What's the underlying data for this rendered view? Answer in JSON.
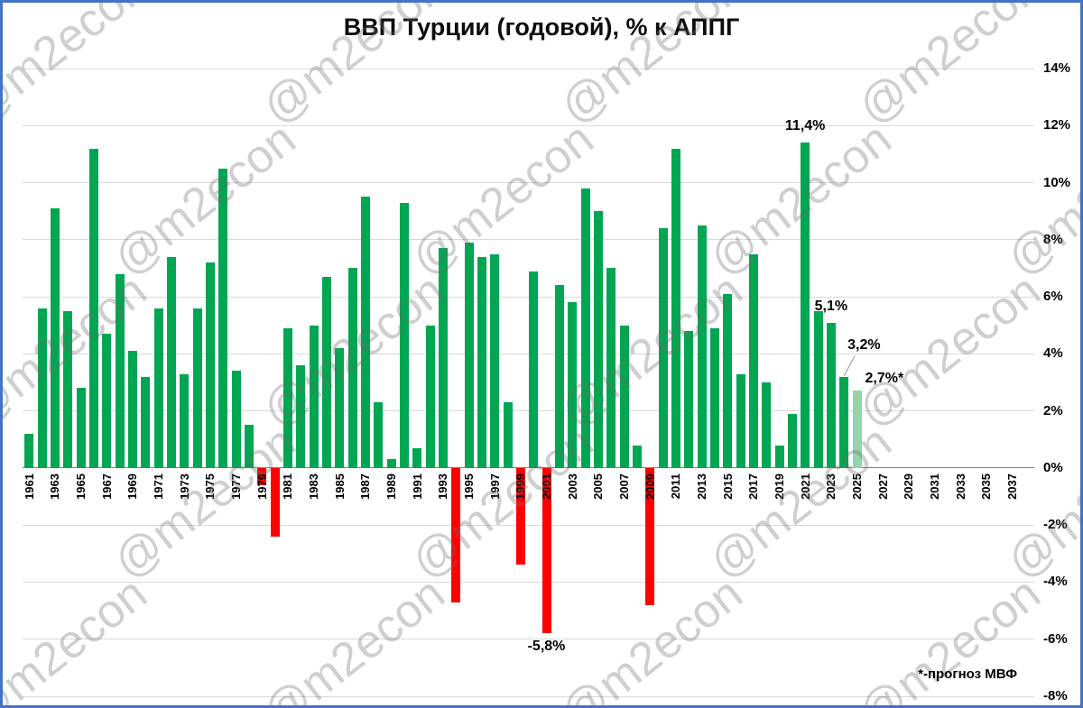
{
  "title": "ВВП Турции (годовой), % к АППГ",
  "footnote": "*-прогноз МВФ",
  "watermark": "@m2econ",
  "chart_data": {
    "type": "bar",
    "title": "ВВП Турции (годовой), % к АППГ",
    "ylabel": "% к АППГ",
    "ylim": [
      -8,
      14
    ],
    "y_tick_step": 2,
    "grid": true,
    "y_axis_side": "right",
    "x_first_year": 1961,
    "x_last_tick_year": 2037,
    "x_tick_step": 2,
    "years": [
      1961,
      1962,
      1963,
      1964,
      1965,
      1966,
      1967,
      1968,
      1969,
      1970,
      1971,
      1972,
      1973,
      1974,
      1975,
      1976,
      1977,
      1978,
      1979,
      1980,
      1981,
      1982,
      1983,
      1984,
      1985,
      1986,
      1987,
      1988,
      1989,
      1990,
      1991,
      1992,
      1993,
      1994,
      1995,
      1996,
      1997,
      1998,
      1999,
      2000,
      2001,
      2002,
      2003,
      2004,
      2005,
      2006,
      2007,
      2008,
      2009,
      2010,
      2011,
      2012,
      2013,
      2014,
      2015,
      2016,
      2017,
      2018,
      2019,
      2020,
      2021,
      2022,
      2023,
      2024,
      2025
    ],
    "values": [
      1.2,
      5.6,
      9.1,
      5.5,
      2.8,
      11.2,
      4.7,
      6.8,
      4.1,
      3.2,
      5.6,
      7.4,
      3.3,
      5.6,
      7.2,
      10.5,
      3.4,
      1.5,
      -0.6,
      -2.4,
      4.9,
      3.6,
      5.0,
      6.7,
      4.2,
      7.0,
      9.5,
      2.3,
      0.3,
      9.3,
      0.7,
      5.0,
      7.7,
      -4.7,
      7.9,
      7.4,
      7.5,
      2.3,
      -3.4,
      6.9,
      -5.8,
      6.4,
      5.8,
      9.8,
      9.0,
      7.0,
      5.0,
      0.8,
      -4.8,
      8.4,
      11.2,
      4.8,
      8.5,
      4.9,
      6.1,
      3.3,
      7.5,
      3.0,
      0.8,
      1.9,
      11.4,
      5.5,
      5.1,
      3.2,
      2.7
    ],
    "forecast_years": [
      2025
    ],
    "colors": {
      "positive": "#00A651",
      "negative": "#FF0000",
      "forecast": "#93D5A9",
      "grid": "#D9D9D9",
      "axis": "#808080",
      "frame": "#4472C4"
    },
    "annotations": [
      {
        "text": "11,4%",
        "year": 2021,
        "position": "above",
        "leader": false
      },
      {
        "text": "5,1%",
        "year": 2023,
        "position": "above",
        "leader": false
      },
      {
        "text": "3,2%",
        "year": 2024,
        "position": "above-right",
        "leader": true
      },
      {
        "text": "2,7%*",
        "year": 2025,
        "position": "right",
        "leader": false
      },
      {
        "text": "-5,8%",
        "year": 2001,
        "position": "below",
        "leader": false
      }
    ]
  }
}
